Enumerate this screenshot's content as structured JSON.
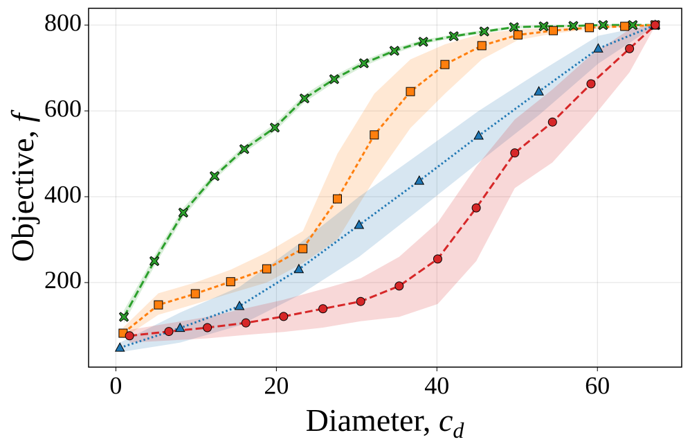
{
  "chart_data": {
    "type": "line",
    "xlabel": {
      "text": "Diameter, ",
      "symbol": "c",
      "subscript": "d"
    },
    "ylabel": {
      "text": "Objective, ",
      "symbol": "f"
    },
    "xlim": [
      -3.4,
      70.5
    ],
    "ylim": [
      3,
      839
    ],
    "xticks": [
      0,
      20,
      40,
      60
    ],
    "yticks": [
      200,
      400,
      600,
      800
    ],
    "grid": true,
    "series": [
      {
        "color": "#2ca02c",
        "marker": "x",
        "linestyle": "dashed",
        "x": [
          1.0,
          4.8,
          8.4,
          12.3,
          16.0,
          19.8,
          23.5,
          27.2,
          30.9,
          34.7,
          38.3,
          42.1,
          45.9,
          49.6,
          53.3,
          57.0,
          60.7,
          64.4,
          67.2
        ],
        "values": [
          120,
          250,
          363,
          448,
          511,
          561,
          629,
          674,
          711,
          740,
          761,
          774,
          785,
          795,
          797,
          798,
          800,
          800,
          800
        ],
        "lower": [
          105,
          238,
          352,
          440,
          503,
          552,
          620,
          666,
          704,
          734,
          756,
          770,
          781,
          792,
          795,
          796,
          798,
          799,
          799
        ],
        "upper": [
          135,
          262,
          374,
          456,
          519,
          570,
          638,
          682,
          718,
          746,
          766,
          778,
          789,
          798,
          800,
          800,
          802,
          801,
          801
        ]
      },
      {
        "color": "#ff7f0e",
        "marker": "s",
        "linestyle": "dashed-short",
        "x": [
          0.9,
          5.3,
          9.9,
          14.3,
          18.8,
          23.3,
          27.6,
          32.2,
          36.7,
          41.0,
          45.6,
          50.1,
          54.5,
          59.0,
          63.4,
          67.2
        ],
        "values": [
          82,
          148,
          174,
          202,
          232,
          279,
          395,
          544,
          645,
          708,
          752,
          777,
          787,
          794,
          797,
          800
        ],
        "lower": [
          70,
          125,
          150,
          175,
          200,
          245,
          300,
          440,
          560,
          640,
          720,
          765,
          780,
          790,
          795,
          799
        ],
        "upper": [
          95,
          175,
          200,
          230,
          270,
          320,
          500,
          640,
          720,
          755,
          780,
          790,
          795,
          798,
          800,
          801
        ]
      },
      {
        "color": "#1f77b4",
        "marker": "^",
        "linestyle": "dotted",
        "x": [
          0.5,
          8.0,
          15.4,
          22.8,
          30.3,
          37.8,
          45.2,
          52.7,
          60.1,
          67.2
        ],
        "values": [
          48,
          94,
          145,
          231,
          334,
          437,
          542,
          645,
          745,
          800
        ],
        "lower": [
          38,
          60,
          100,
          170,
          260,
          370,
          480,
          590,
          710,
          798
        ],
        "upper": [
          60,
          130,
          190,
          290,
          400,
          500,
          600,
          690,
          775,
          802
        ]
      },
      {
        "color": "#d62728",
        "marker": "o",
        "linestyle": "dashed",
        "x": [
          1.7,
          6.6,
          11.4,
          16.2,
          20.9,
          25.8,
          30.5,
          35.3,
          40.1,
          44.9,
          49.7,
          54.4,
          59.2,
          64.0,
          67.2
        ],
        "values": [
          76,
          86,
          95,
          106,
          121,
          139,
          156,
          192,
          255,
          374,
          502,
          574,
          663,
          745,
          800
        ],
        "lower": [
          60,
          65,
          70,
          78,
          85,
          95,
          110,
          120,
          150,
          250,
          420,
          480,
          580,
          690,
          798
        ],
        "upper": [
          90,
          105,
          120,
          140,
          160,
          185,
          210,
          260,
          340,
          470,
          580,
          650,
          730,
          790,
          802
        ]
      }
    ]
  }
}
